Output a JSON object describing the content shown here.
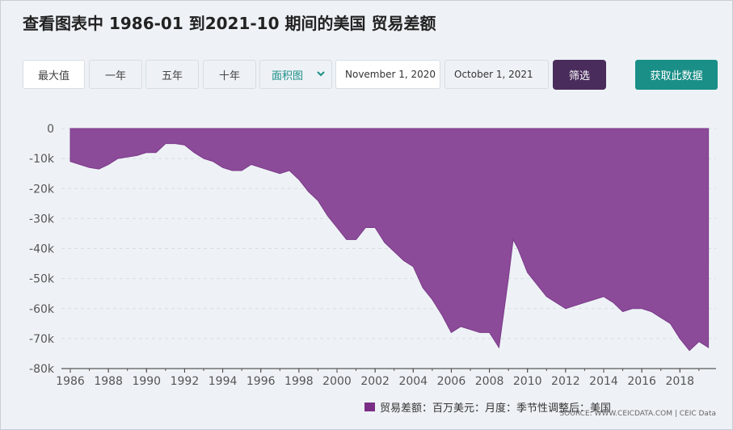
{
  "title": "查看图表中 1986-01 到2021-10 期间的美国 贸易差额",
  "range_buttons": [
    "最大值",
    "一年",
    "五年",
    "十年"
  ],
  "chart_type_select": "面积图",
  "date_from": "November 1, 2020",
  "date_to": "October 1, 2021",
  "filter_label": "筛选",
  "fetch_label": "获取此数据",
  "legend_label": "贸易差额：百万美元：月度：季节性调整后：美国",
  "source_text": "SOURCE: WWW.CEICDATA.COM | CEIC Data",
  "colors": {
    "area": "#8c4b99",
    "accent": "#1a8f87",
    "filter": "#4a2c5c"
  },
  "chart_data": {
    "type": "area",
    "title": "",
    "xlabel": "",
    "ylabel": "",
    "ylim": [
      -80000,
      0
    ],
    "xlim": [
      1986,
      2019.6
    ],
    "y_ticks": [
      0,
      -10000,
      -20000,
      -30000,
      -40000,
      -50000,
      -60000,
      -70000,
      -80000
    ],
    "y_tick_labels": [
      "0",
      "-10k",
      "-20k",
      "-30k",
      "-40k",
      "-50k",
      "-60k",
      "-70k",
      "-80k"
    ],
    "x_tick_labels": [
      "1986",
      "1988",
      "1990",
      "1992",
      "1994",
      "1996",
      "1998",
      "2000",
      "2002",
      "2004",
      "2006",
      "2008",
      "2010",
      "2012",
      "2014",
      "2016",
      "2018"
    ],
    "grid": "horizontal-dashed",
    "series": [
      {
        "name": "贸易差额：百万美元：月度：季节性调整后：美国",
        "x": [
          1986.0,
          1986.5,
          1987.0,
          1987.5,
          1988.0,
          1988.5,
          1989.0,
          1989.5,
          1990.0,
          1990.5,
          1991.0,
          1991.5,
          1992.0,
          1992.5,
          1993.0,
          1993.5,
          1994.0,
          1994.5,
          1995.0,
          1995.5,
          1996.0,
          1996.5,
          1997.0,
          1997.5,
          1998.0,
          1998.5,
          1999.0,
          1999.5,
          2000.0,
          2000.5,
          2001.0,
          2001.5,
          2002.0,
          2002.5,
          2003.0,
          2003.5,
          2004.0,
          2004.5,
          2005.0,
          2005.5,
          2006.0,
          2006.5,
          2007.0,
          2007.5,
          2008.0,
          2008.5,
          2009.0,
          2009.25,
          2009.5,
          2010.0,
          2010.5,
          2011.0,
          2011.5,
          2012.0,
          2012.5,
          2013.0,
          2013.5,
          2014.0,
          2014.5,
          2015.0,
          2015.5,
          2016.0,
          2016.5,
          2017.0,
          2017.5,
          2018.0,
          2018.5,
          2019.0,
          2019.5
        ],
        "values": [
          -11000,
          -12000,
          -13000,
          -13500,
          -12000,
          -10000,
          -9500,
          -9000,
          -8000,
          -8000,
          -5000,
          -5000,
          -5500,
          -8000,
          -10000,
          -11000,
          -13000,
          -14000,
          -14000,
          -12000,
          -13000,
          -14000,
          -15000,
          -14000,
          -17000,
          -21000,
          -24000,
          -29000,
          -33000,
          -37000,
          -37000,
          -33000,
          -33000,
          -38000,
          -41000,
          -44000,
          -46000,
          -53000,
          -57000,
          -62000,
          -68000,
          -66000,
          -67000,
          -68000,
          -68000,
          -73000,
          -50000,
          -37000,
          -40000,
          -48000,
          -52000,
          -56000,
          -58000,
          -60000,
          -59000,
          -58000,
          -57000,
          -56000,
          -58000,
          -61000,
          -60000,
          -60000,
          -61000,
          -63000,
          -65000,
          -70000,
          -74000,
          -71000,
          -73000
        ]
      }
    ]
  }
}
